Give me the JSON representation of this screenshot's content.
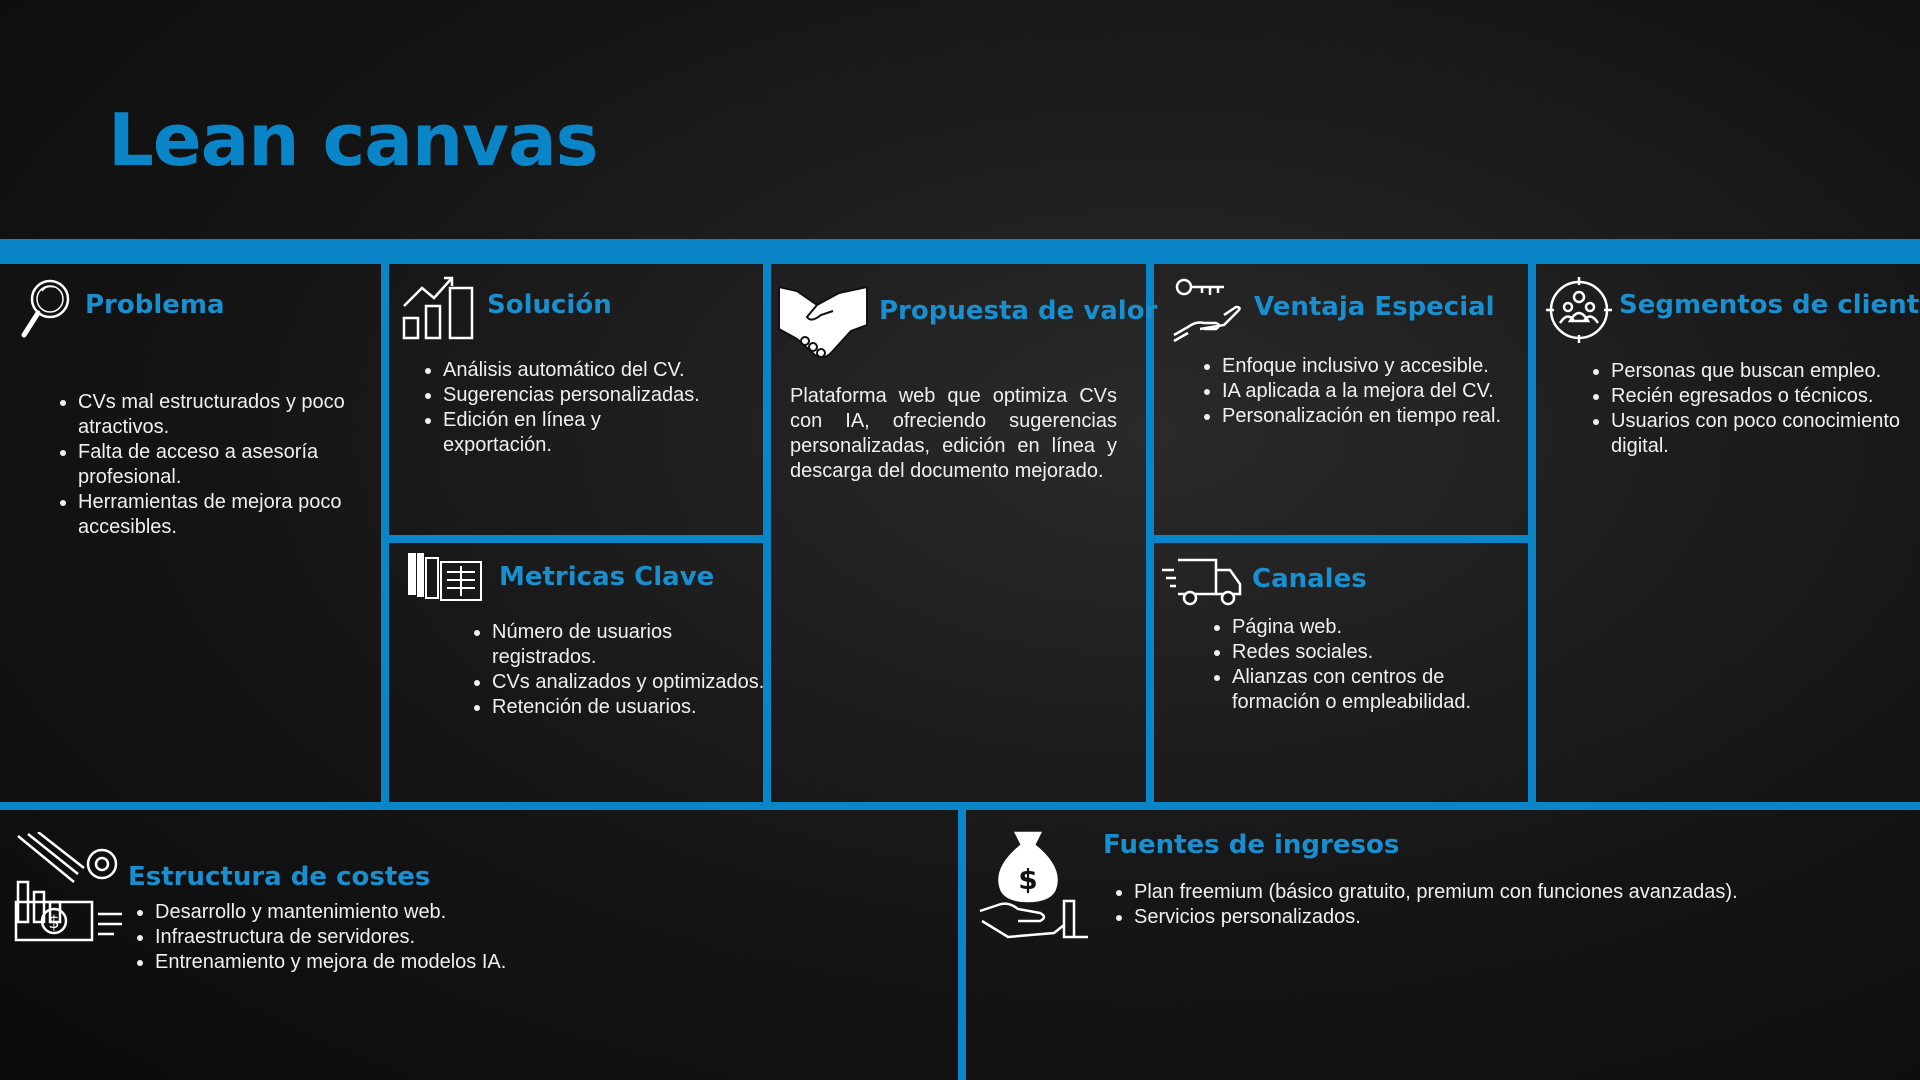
{
  "title": "Lean canvas",
  "accent_color": "#0a86c8",
  "problema": {
    "heading": "Problema",
    "icon": "magnifier-icon",
    "items": [
      "CVs mal estructurados y poco atractivos.",
      "Falta de acceso a asesoría profesional.",
      "Herramientas de mejora poco accesibles."
    ]
  },
  "solucion": {
    "heading": "Solución",
    "icon": "bar-chart-up-icon",
    "items": [
      "Análisis automático del CV.",
      "Sugerencias personalizadas.",
      "Edición en línea y exportación."
    ]
  },
  "metricas": {
    "heading": "Metricas Clave",
    "icon": "documents-icon",
    "items": [
      "Número de usuarios registrados.",
      "CVs analizados y optimizados.",
      "Retención de usuarios."
    ]
  },
  "propuesta": {
    "heading": "Propuesta de valor",
    "icon": "handshake-icon",
    "text": "Plataforma web que optimiza CVs con IA, ofreciendo sugerencias personalizadas, edición en línea y descarga del documento mejorado."
  },
  "ventaja": {
    "heading": "Ventaja Especial",
    "icon": "hand-key-icon",
    "items": [
      "Enfoque inclusivo y accesible.",
      "IA aplicada a la mejora del CV.",
      "Personalización en tiempo real."
    ]
  },
  "canales": {
    "heading": "Canales",
    "icon": "delivery-truck-icon",
    "items": [
      "Página web.",
      "Redes sociales.",
      "Alianzas con centros de formación o empleabilidad."
    ]
  },
  "segmentos": {
    "heading": "Segmentos de clientes",
    "icon": "target-people-icon",
    "items": [
      "Personas que buscan empleo.",
      "Recién egresados o técnicos.",
      "Usuarios con poco conocimiento digital."
    ]
  },
  "costes": {
    "heading": "Estructura de costes",
    "icon": "costs-chart-icon",
    "items": [
      "Desarrollo y mantenimiento web.",
      "Infraestructura de servidores.",
      "Entrenamiento y mejora de modelos IA."
    ]
  },
  "ingresos": {
    "heading": "Fuentes de ingresos",
    "icon": "money-bag-hand-icon",
    "items": [
      "Plan freemium (básico gratuito, premium con funciones avanzadas).",
      "Servicios personalizados."
    ]
  }
}
